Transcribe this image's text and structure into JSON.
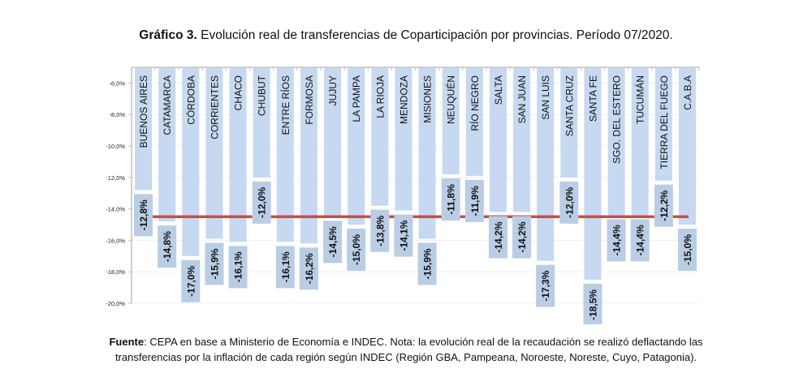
{
  "chart_data": {
    "type": "bar",
    "title_bold": "Gráfico 3.",
    "title": "Evolución real de transferencias de Coparticipación por provincias. Período 07/2020.",
    "xlabel": "",
    "ylabel": "",
    "ylim": [
      -20,
      -5
    ],
    "yticks": [
      -6,
      -8,
      -10,
      -12,
      -14,
      -16,
      -18,
      -20
    ],
    "ytick_labels": [
      "-6,0%",
      "-8,0%",
      "-10,0%",
      "-12,0%",
      "-14,0%",
      "-16,0%",
      "-18,0%",
      "-20,0%"
    ],
    "categories": [
      "BUENOS AIRES",
      "CATAMARCA",
      "CÓRDOBA",
      "CORRIENTES",
      "CHACO",
      "CHUBUT",
      "ENTRE RÍOS",
      "FORMOSA",
      "JUJUY",
      "LA PAMPA",
      "LA RIOJA",
      "MENDOZA",
      "MISIONES",
      "NEUQUÉN",
      "RÍO NEGRO",
      "SALTA",
      "SAN JUAN",
      "SAN LUIS",
      "SANTA CRUZ",
      "SANTA FE",
      "SGO. DEL ESTERO",
      "TUCUMÁN",
      "TIERRA DEL FUEGO",
      "C.A.B.A"
    ],
    "values": [
      -12.8,
      -14.8,
      -17.0,
      -15.9,
      -16.1,
      -12.0,
      -16.1,
      -16.2,
      -14.5,
      -15.0,
      -13.8,
      -14.1,
      -15.9,
      -11.8,
      -11.9,
      -14.2,
      -14.2,
      -17.3,
      -12.0,
      -18.5,
      -14.4,
      -14.4,
      -12.2,
      -15.0
    ],
    "data_labels": [
      "-12,8%",
      "-14,8%",
      "-17,0%",
      "-15,9%",
      "-16,1%",
      "-12,0%",
      "-16,1%",
      "-16,2%",
      "-14,5%",
      "-15,0%",
      "-13,8%",
      "-14,1%",
      "-15,9%",
      "-11,8%",
      "-11,9%",
      "-14,2%",
      "-14,2%",
      "-17,3%",
      "-12,0%",
      "-18,5%",
      "-14,4%",
      "-14,4%",
      "-12,2%",
      "-15,0%"
    ],
    "reference_line": -14.5,
    "colors": {
      "bar": "#c6d9f0",
      "label_box": "#b9cde5",
      "reference_line": "#c0504d",
      "axis": "#bfbfbf"
    }
  },
  "footer": {
    "source_bold": "Fuente",
    "line1": ": CEPA en base a Ministerio de Economía e INDEC. Nota: la evolución real de la recaudación se realizó deflactando las",
    "line2": "transferencias por la inflación de cada región según INDEC (Región GBA, Pampeana, Noroeste, Noreste, Cuyo, Patagonia)."
  }
}
